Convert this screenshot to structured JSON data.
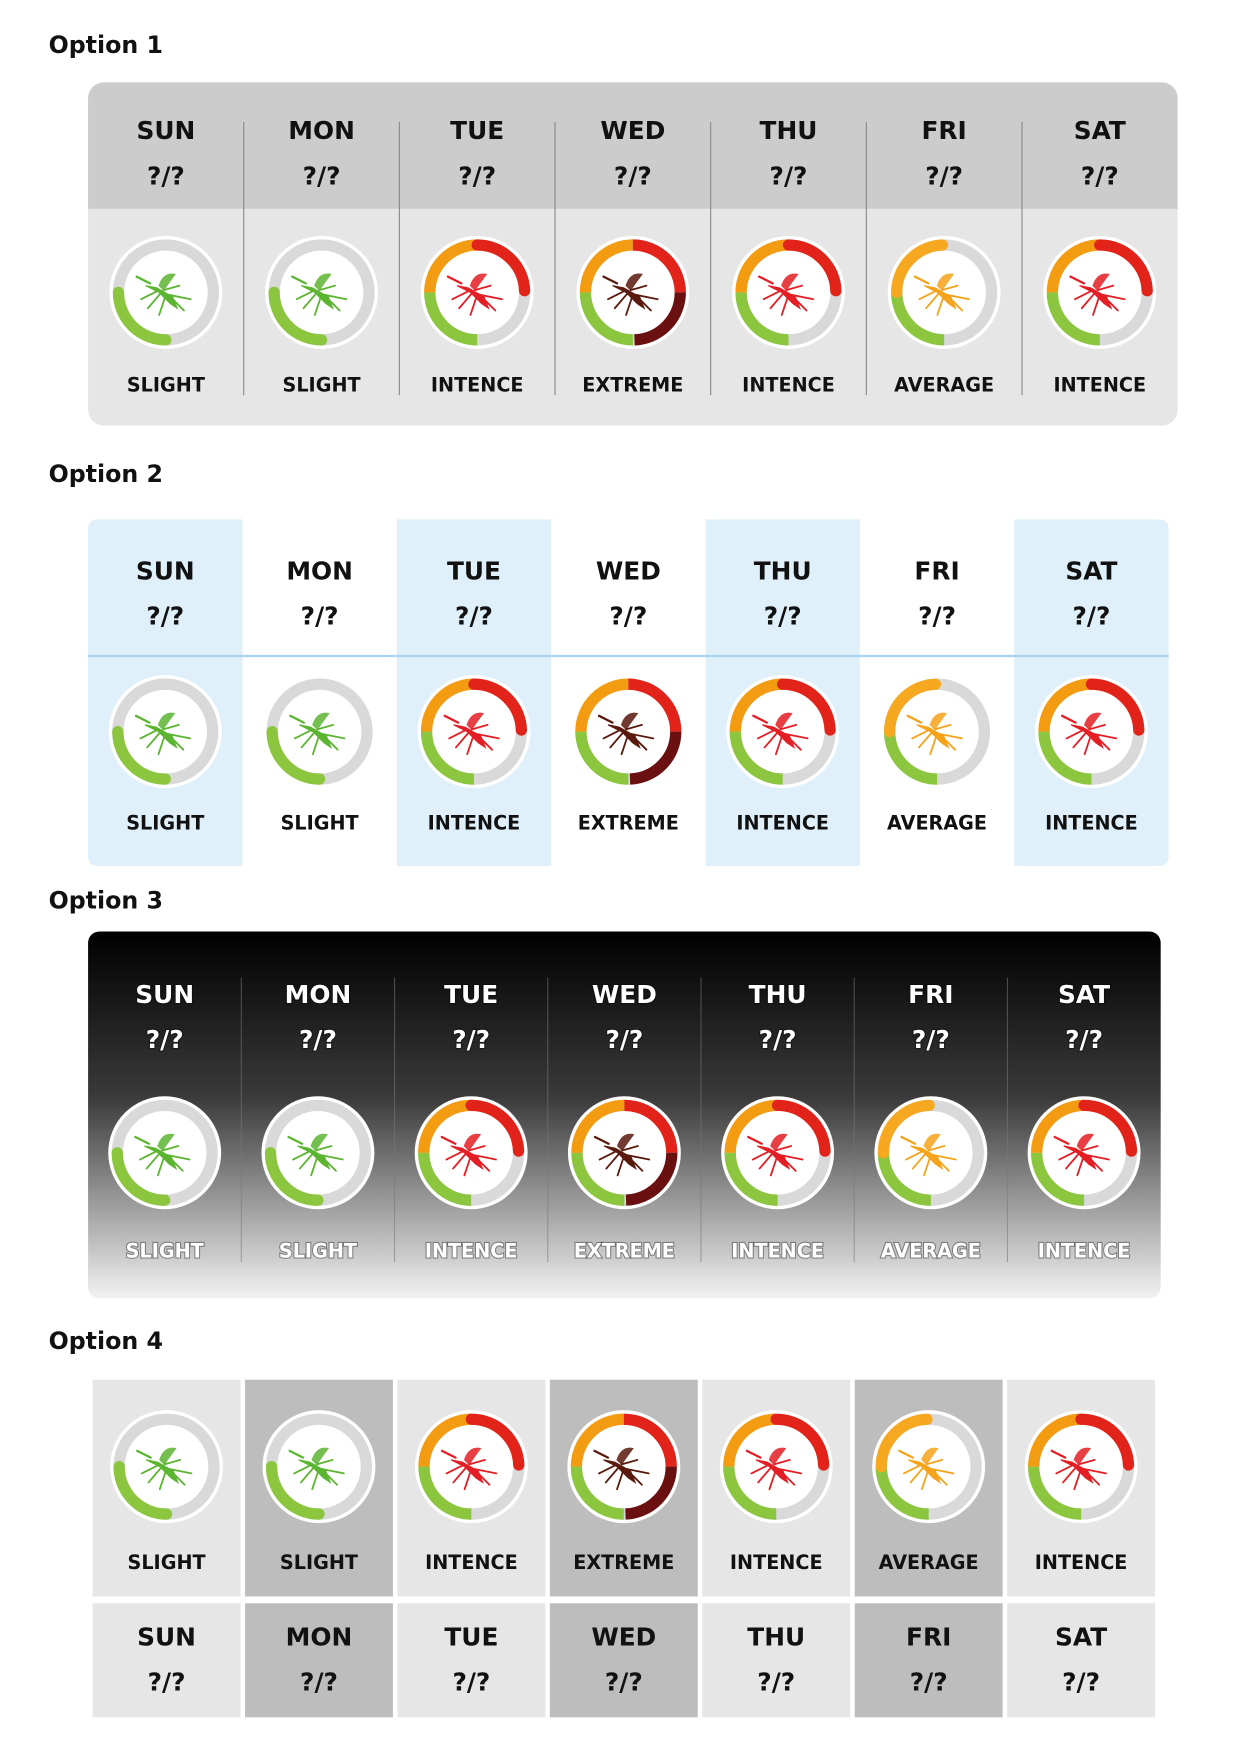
{
  "options": [
    {
      "title": "Option 1",
      "days": [
        {
          "day": "SUN",
          "date": "?/?",
          "level": "SLIGHT"
        },
        {
          "day": "MON",
          "date": "?/?",
          "level": "SLIGHT"
        },
        {
          "day": "TUE",
          "date": "?/?",
          "level": "INTENCE"
        },
        {
          "day": "WED",
          "date": "?/?",
          "level": "EXTREME"
        },
        {
          "day": "THU",
          "date": "?/?",
          "level": "INTENCE"
        },
        {
          "day": "FRI",
          "date": "?/?",
          "level": "AVERAGE"
        },
        {
          "day": "SAT",
          "date": "?/?",
          "level": "INTENCE"
        }
      ]
    },
    {
      "title": "Option 2",
      "days": [
        {
          "day": "SUN",
          "date": "?/?",
          "level": "SLIGHT"
        },
        {
          "day": "MON",
          "date": "?/?",
          "level": "SLIGHT"
        },
        {
          "day": "TUE",
          "date": "?/?",
          "level": "INTENCE"
        },
        {
          "day": "WED",
          "date": "?/?",
          "level": "EXTREME"
        },
        {
          "day": "THU",
          "date": "?/?",
          "level": "INTENCE"
        },
        {
          "day": "FRI",
          "date": "?/?",
          "level": "AVERAGE"
        },
        {
          "day": "SAT",
          "date": "?/?",
          "level": "INTENCE"
        }
      ]
    },
    {
      "title": "Option 3",
      "days": [
        {
          "day": "SUN",
          "date": "?/?",
          "level": "SLIGHT"
        },
        {
          "day": "MON",
          "date": "?/?",
          "level": "SLIGHT"
        },
        {
          "day": "TUE",
          "date": "?/?",
          "level": "INTENCE"
        },
        {
          "day": "WED",
          "date": "?/?",
          "level": "EXTREME"
        },
        {
          "day": "THU",
          "date": "?/?",
          "level": "INTENCE"
        },
        {
          "day": "FRI",
          "date": "?/?",
          "level": "AVERAGE"
        },
        {
          "day": "SAT",
          "date": "?/?",
          "level": "INTENCE"
        }
      ]
    },
    {
      "title": "Option 4",
      "days": [
        {
          "day": "SUN",
          "date": "?/?",
          "level": "SLIGHT"
        },
        {
          "day": "MON",
          "date": "?/?",
          "level": "SLIGHT"
        },
        {
          "day": "TUE",
          "date": "?/?",
          "level": "INTENCE"
        },
        {
          "day": "WED",
          "date": "?/?",
          "level": "EXTREME"
        },
        {
          "day": "THU",
          "date": "?/?",
          "level": "INTENCE"
        },
        {
          "day": "FRI",
          "date": "?/?",
          "level": "AVERAGE"
        },
        {
          "day": "SAT",
          "date": "?/?",
          "level": "INTENCE"
        }
      ]
    }
  ]
}
